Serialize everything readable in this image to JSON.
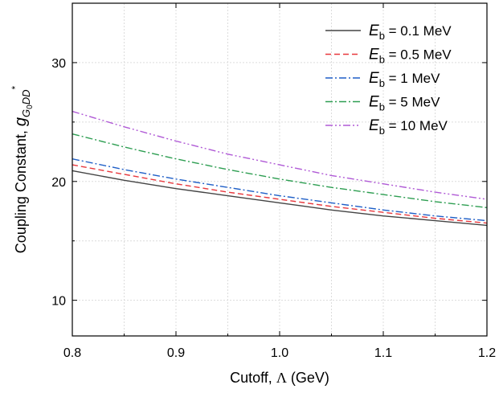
{
  "chart_data": {
    "type": "line",
    "xlabel_prefix": "Cutoff, ",
    "xlabel_symbol": "Λ",
    "xlabel_suffix": " (GeV)",
    "ylabel_prefix": "Coupling Constant, ",
    "ylabel_symbol": "g",
    "ylabel_subscript": "G",
    "ylabel_subsub": "0",
    "ylabel_subscript_rest": "DD",
    "ylabel_superscript": "*",
    "xlim": [
      0.8,
      1.2
    ],
    "ylim": [
      7,
      35
    ],
    "x_ticks": [
      "0.8",
      "0.9",
      "1.0",
      "1.1",
      "1.2"
    ],
    "x_tick_values": [
      0.8,
      0.9,
      1.0,
      1.1,
      1.2
    ],
    "y_ticks": [
      "10",
      "20",
      "30"
    ],
    "y_tick_values": [
      10,
      20,
      30
    ],
    "grid": true,
    "legend_position": "top-right",
    "x": [
      0.8,
      0.85,
      0.9,
      0.95,
      1.0,
      1.05,
      1.1,
      1.15,
      1.2
    ],
    "series": [
      {
        "name_symbol": "E",
        "name_sub": "b",
        "name_rest": " = 0.1 MeV",
        "color": "#444444",
        "dash": "solid",
        "values": [
          20.9,
          20.1,
          19.4,
          18.8,
          18.2,
          17.6,
          17.1,
          16.7,
          16.3
        ]
      },
      {
        "name_symbol": "E",
        "name_sub": "b",
        "name_rest": " = 0.5 MeV",
        "color": "#e8383d",
        "dash": "dash",
        "values": [
          21.4,
          20.6,
          19.8,
          19.1,
          18.5,
          17.9,
          17.4,
          16.9,
          16.5
        ]
      },
      {
        "name_symbol": "E",
        "name_sub": "b",
        "name_rest": " = 1 MeV",
        "color": "#1f5fc7",
        "dash": "dashdot",
        "values": [
          21.9,
          21.0,
          20.2,
          19.5,
          18.8,
          18.2,
          17.6,
          17.1,
          16.7
        ]
      },
      {
        "name_symbol": "E",
        "name_sub": "b",
        "name_rest": " = 5 MeV",
        "color": "#2e9e52",
        "dash": "dashdot",
        "values": [
          24.0,
          22.9,
          21.9,
          21.0,
          20.2,
          19.5,
          18.9,
          18.3,
          17.8
        ]
      },
      {
        "name_symbol": "E",
        "name_sub": "b",
        "name_rest": " = 10 MeV",
        "color": "#b05ad6",
        "dash": "dashdotdot",
        "values": [
          25.9,
          24.6,
          23.4,
          22.3,
          21.4,
          20.5,
          19.8,
          19.1,
          18.5
        ]
      }
    ]
  }
}
